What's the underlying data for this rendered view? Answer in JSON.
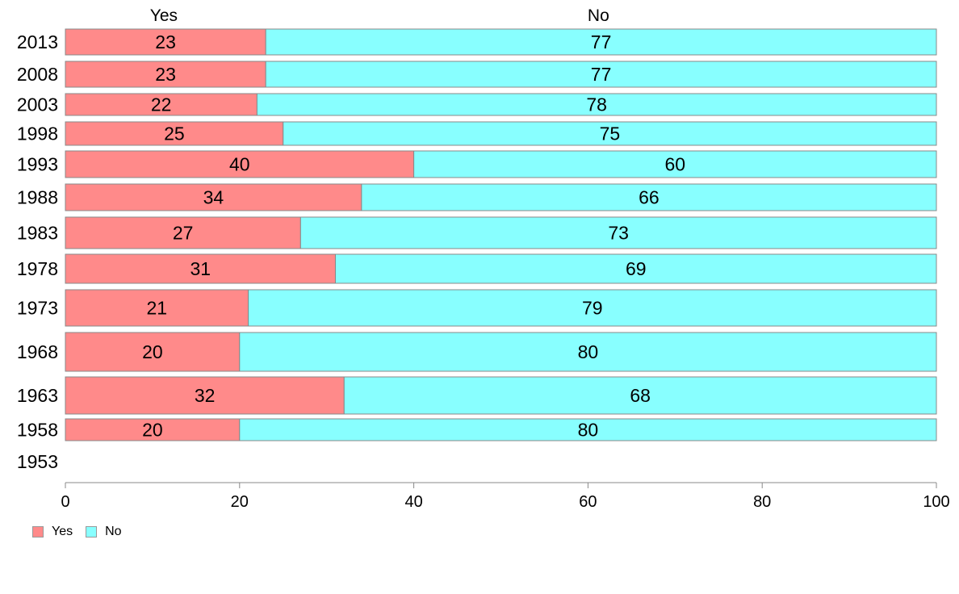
{
  "chart_data": {
    "type": "bar",
    "orientation": "horizontal",
    "stacked": true,
    "categories": [
      "2013",
      "2008",
      "2003",
      "1998",
      "1993",
      "1988",
      "1983",
      "1978",
      "1973",
      "1968",
      "1963",
      "1958",
      "1953"
    ],
    "series": [
      {
        "name": "Yes",
        "color": "#ff8a8a",
        "values": [
          23,
          23,
          22,
          25,
          40,
          34,
          27,
          31,
          21,
          20,
          32,
          20,
          null
        ],
        "labels": [
          "23",
          "23",
          "22",
          "25",
          "40",
          "34",
          "27",
          "31",
          "21",
          "20",
          "32",
          "20",
          ""
        ]
      },
      {
        "name": "No",
        "color": "#88ffff",
        "values": [
          77,
          77,
          78,
          75,
          60,
          66,
          73,
          69,
          79,
          80,
          68,
          80,
          null
        ],
        "labels": [
          "77",
          "77",
          "78",
          "75",
          "60",
          "66",
          "73",
          "69",
          "79",
          "80",
          "68",
          "80",
          ""
        ]
      }
    ],
    "xlim": [
      0,
      100
    ],
    "xticks": [
      "0",
      "20",
      "40",
      "60",
      "80",
      "100"
    ],
    "top_labels": [
      "Yes",
      "No"
    ],
    "legend_position": "bottom-left",
    "grid": false,
    "title": "",
    "xlabel": "",
    "ylabel": ""
  }
}
